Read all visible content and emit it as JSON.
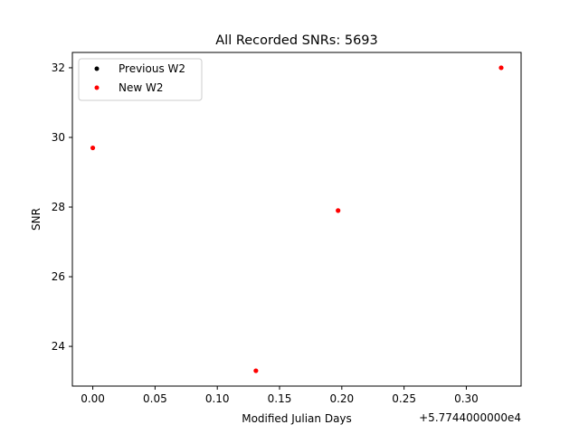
{
  "chart_data": {
    "type": "scatter",
    "title": "All Recorded SNRs: 5693",
    "xlabel": "Modified Julian Days",
    "ylabel": "SNR",
    "x_offset_label": "+5.7744000000e4",
    "xlim": [
      -0.0164,
      0.344
    ],
    "ylim": [
      22.86,
      32.44
    ],
    "xticks": [
      0.0,
      0.05,
      0.1,
      0.15,
      0.2,
      0.25,
      0.3
    ],
    "xtick_labels": [
      "0.00",
      "0.05",
      "0.10",
      "0.15",
      "0.20",
      "0.25",
      "0.30"
    ],
    "yticks": [
      24,
      26,
      28,
      30,
      32
    ],
    "ytick_labels": [
      "24",
      "26",
      "28",
      "30",
      "32"
    ],
    "grid": false,
    "legend_position": "upper-left",
    "series": [
      {
        "name": "Previous W2",
        "color": "#000000",
        "x": [],
        "y": []
      },
      {
        "name": "New W2",
        "color": "#ff0000",
        "x": [
          0.0,
          0.131,
          0.197,
          0.328
        ],
        "y": [
          29.7,
          23.3,
          27.9,
          32.0
        ]
      }
    ]
  }
}
